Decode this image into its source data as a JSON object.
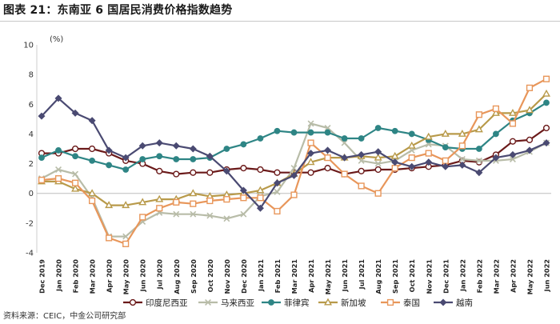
{
  "title": "图表 21：东南亚 6 国居民消费价格指数趋势",
  "source": "资料来源：CEIC，中金公司研究部",
  "chart_data": {
    "type": "line",
    "ylabel": "(%)",
    "ylim": [
      -4,
      10
    ],
    "yticks": [
      -4,
      -2,
      0,
      2,
      4,
      6,
      8,
      10
    ],
    "grid": false,
    "legend_position": "bottom",
    "categories": [
      "Dec 2019",
      "Jan 2020",
      "Feb 2020",
      "Mar 2020",
      "Apr 2020",
      "May 2020",
      "Jun 2020",
      "Jul 2020",
      "Aug 2020",
      "Sep 2020",
      "Oct 2020",
      "Nov 2020",
      "Dec 2020",
      "Jan 2021",
      "Feb 2021",
      "Mar 2021",
      "Apr 2021",
      "May 2021",
      "Jun 2021",
      "Jul 2021",
      "Aug 2021",
      "Sep 2021",
      "Oct 2021",
      "Nov 2021",
      "Dec 2021",
      "Jan 2022",
      "Feb 2022",
      "Mar 2022",
      "Apr 2022",
      "May 2022",
      "Jun 2022"
    ],
    "series": [
      {
        "name": "印度尼西亚",
        "color": "#6b1a1a",
        "marker": "circle-open",
        "values": [
          2.7,
          2.7,
          3.0,
          3.0,
          2.7,
          2.2,
          2.0,
          1.5,
          1.3,
          1.4,
          1.4,
          1.6,
          1.7,
          1.6,
          1.4,
          1.4,
          1.4,
          1.7,
          1.3,
          1.5,
          1.6,
          1.6,
          1.7,
          1.8,
          1.9,
          2.2,
          2.1,
          2.6,
          3.5,
          3.6,
          4.4
        ]
      },
      {
        "name": "马来西亚",
        "color": "#b8bca8",
        "marker": "x",
        "values": [
          1.0,
          1.6,
          1.3,
          -0.3,
          -2.9,
          -2.9,
          -1.9,
          -1.3,
          -1.4,
          -1.4,
          -1.5,
          -1.7,
          -1.4,
          -0.2,
          0.1,
          1.7,
          4.7,
          4.4,
          3.4,
          2.2,
          2.0,
          2.2,
          2.9,
          3.3,
          3.2,
          2.3,
          2.2,
          2.2,
          2.3,
          2.8,
          3.4
        ]
      },
      {
        "name": "菲律宾",
        "color": "#2e8585",
        "marker": "circle-filled",
        "values": [
          2.4,
          2.9,
          2.5,
          2.2,
          1.9,
          1.6,
          2.3,
          2.5,
          2.3,
          2.3,
          2.4,
          3.0,
          3.3,
          3.7,
          4.2,
          4.1,
          4.1,
          4.1,
          3.7,
          3.7,
          4.4,
          4.2,
          4.0,
          3.6,
          3.1,
          3.0,
          3.0,
          4.0,
          4.9,
          5.4,
          6.1
        ]
      },
      {
        "name": "新加坡",
        "color": "#b89a4a",
        "marker": "triangle-open",
        "values": [
          0.8,
          0.8,
          0.3,
          0.0,
          -0.8,
          -0.8,
          -0.6,
          -0.4,
          -0.4,
          0.0,
          -0.2,
          -0.1,
          0.0,
          0.2,
          0.7,
          1.3,
          2.1,
          2.4,
          2.4,
          2.5,
          2.4,
          2.5,
          3.2,
          3.8,
          4.0,
          4.0,
          4.3,
          5.4,
          5.4,
          5.6,
          6.7
        ]
      },
      {
        "name": "泰国",
        "color": "#e8965a",
        "marker": "square-open",
        "values": [
          0.9,
          1.0,
          0.7,
          -0.5,
          -3.0,
          -3.4,
          -1.6,
          -1.0,
          -0.6,
          -0.7,
          -0.5,
          -0.4,
          -0.3,
          -0.3,
          -1.2,
          -0.1,
          3.4,
          2.4,
          1.3,
          0.5,
          0.0,
          1.7,
          2.4,
          2.7,
          2.2,
          3.2,
          5.3,
          5.7,
          4.7,
          7.1,
          7.7
        ]
      },
      {
        "name": "越南",
        "color": "#4a4a72",
        "marker": "diamond-filled",
        "values": [
          5.2,
          6.4,
          5.4,
          4.9,
          2.9,
          2.4,
          3.2,
          3.4,
          3.2,
          3.0,
          2.5,
          1.5,
          0.2,
          -1.0,
          0.7,
          1.2,
          2.7,
          2.9,
          2.4,
          2.6,
          2.8,
          2.1,
          1.8,
          2.1,
          1.8,
          1.9,
          1.4,
          2.4,
          2.6,
          2.9,
          3.4
        ]
      }
    ]
  }
}
